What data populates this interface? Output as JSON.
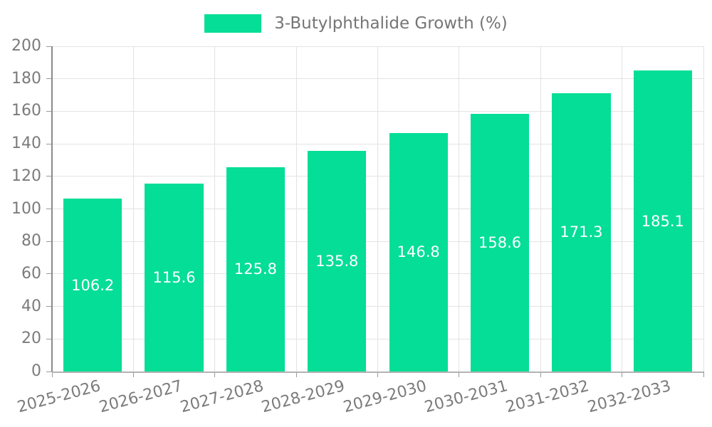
{
  "legend": {
    "label": "3-Butylphthalide Growth (%)"
  },
  "chart_data": {
    "type": "bar",
    "title": "3-Butylphthalide Growth (%)",
    "categories": [
      "2025-2026",
      "2026-2027",
      "2027-2028",
      "2028-2029",
      "2029-2030",
      "2030-2031",
      "2031-2032",
      "2032-2033"
    ],
    "values": [
      106.2,
      115.6,
      125.8,
      135.8,
      146.8,
      158.6,
      171.3,
      185.1
    ],
    "series": [
      {
        "name": "3-Butylphthalide Growth (%)",
        "values": [
          106.2,
          115.6,
          125.8,
          135.8,
          146.8,
          158.6,
          171.3,
          185.1
        ]
      }
    ],
    "xlabel": "",
    "ylabel": "",
    "ylim": [
      0,
      200
    ],
    "ytick_step": 20,
    "grid": true,
    "legend_position": "top-center",
    "bar_color": "#05de96",
    "value_label_color": "#ffffff",
    "axis_text_color": "#7b7b7b",
    "gridline_color": "#e3e3e3",
    "y_axis_line_color": "#8a8a8a",
    "x_axis_line_color": "#b2b2b2"
  }
}
